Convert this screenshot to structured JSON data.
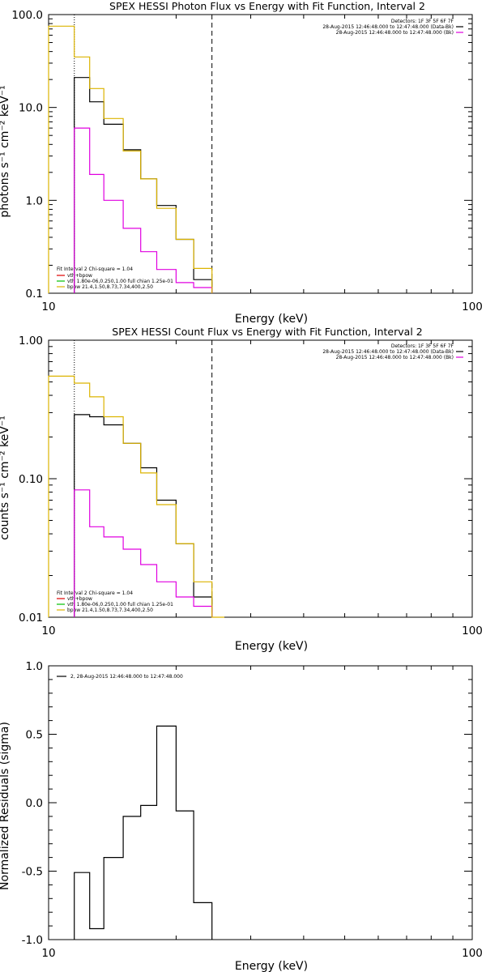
{
  "chart_data": [
    {
      "type": "line",
      "title": "SPEX HESSI Photon Flux vs Energy with Fit Function, Interval 2",
      "xlabel": "Energy (keV)",
      "ylabel": "photons s⁻¹ cm⁻² keV⁻¹",
      "xscale": "log",
      "yscale": "log",
      "xlim": [
        10,
        100
      ],
      "ylim": [
        0.1,
        100
      ],
      "xticks": [
        "10",
        "100"
      ],
      "yticks": [
        "0.1",
        "1.0",
        "10.0",
        "100.0"
      ],
      "vlines": [
        {
          "x": 11.5,
          "style": "dotted"
        },
        {
          "x": 24.3,
          "style": "dashed"
        }
      ],
      "legend_topright": [
        "Detectors: 1F 3F 5F 6F 7F",
        "28-Aug-2015 12:46:48.000 to 12:47:48.000 (Data-Bk)",
        "28-Aug-2015 12:46:48.000 to 12:47:48.000 (Bk)"
      ],
      "legend_bottomleft": [
        "Fit Interval 2   Chi-square = 1.04",
        "vth+bpow",
        "vth 1.80e-06,0.250,1.00  full chian 1.25e-01",
        "bpow 21.4,1.50,8.73,7.34,400,2.50"
      ],
      "series": [
        {
          "name": "28-Aug-2015 12:46:48.000 to 12:47:48.000 (Data-Bk)",
          "color": "#000000",
          "bins": [
            [
              11.5,
              12.5,
              21
            ],
            [
              12.5,
              13.5,
              11.5
            ],
            [
              13.5,
              15,
              6.6
            ],
            [
              15,
              16.5,
              3.5
            ],
            [
              16.5,
              18,
              1.7
            ],
            [
              18,
              20,
              0.88
            ],
            [
              20,
              22,
              0.38
            ],
            [
              22,
              24.3,
              0.14
            ]
          ]
        },
        {
          "name": "28-Aug-2015 12:46:48.000 to 12:47:48.000 (Bk)",
          "color": "#e000e0",
          "bins": [
            [
              11.5,
              12.5,
              6.0
            ],
            [
              12.5,
              13.5,
              1.9
            ],
            [
              13.5,
              15,
              1.0
            ],
            [
              15,
              16.5,
              0.5
            ],
            [
              16.5,
              18,
              0.28
            ],
            [
              18,
              20,
              0.18
            ],
            [
              20,
              22,
              0.13
            ],
            [
              22,
              24.3,
              0.115
            ]
          ]
        },
        {
          "name": "bpow 21.4,1.50,8.73,7.34,400,2.50",
          "color": "#dcb400",
          "bins": [
            [
              10,
              11.5,
              75
            ],
            [
              11.5,
              12.5,
              35
            ],
            [
              12.5,
              13.5,
              16
            ],
            [
              13.5,
              15,
              7.6
            ],
            [
              15,
              16.5,
              3.4
            ],
            [
              16.5,
              18,
              1.7
            ],
            [
              18,
              20,
              0.82
            ],
            [
              20,
              22,
              0.38
            ],
            [
              22,
              24.3,
              0.185
            ]
          ]
        }
      ]
    },
    {
      "type": "line",
      "title": "SPEX HESSI Count Flux vs Energy with Fit Function, Interval 2",
      "xlabel": "Energy (keV)",
      "ylabel": "counts s⁻¹ cm⁻² keV⁻¹",
      "xscale": "log",
      "yscale": "log",
      "xlim": [
        10,
        100
      ],
      "ylim": [
        0.01,
        1.0
      ],
      "xticks": [
        "10",
        "100"
      ],
      "yticks": [
        "0.01",
        "0.10",
        "1.00"
      ],
      "vlines": [
        {
          "x": 11.5,
          "style": "dotted"
        },
        {
          "x": 24.3,
          "style": "dashed"
        }
      ],
      "legend_topright": [
        "Detectors: 1F 3F 5F 6F 7F",
        "28-Aug-2015 12:46:48.000 to 12:47:48.000 (Data-Bk)",
        "28-Aug-2015 12:46:48.000 to 12:47:48.000 (Bk)"
      ],
      "legend_bottomleft": [
        "Fit Interval 2   Chi-square = 1.04",
        "vth+bpow",
        "vth 1.80e-06,0.250,1.00  full chian 1.25e-01",
        "bpow 21.4,1.50,8.73,7.34,400,2.50"
      ],
      "series": [
        {
          "name": "28-Aug-2015 12:46:48.000 to 12:47:48.000 (Data-Bk)",
          "color": "#000000",
          "bins": [
            [
              11.5,
              12.5,
              0.29
            ],
            [
              12.5,
              13.5,
              0.28
            ],
            [
              13.5,
              15,
              0.245
            ],
            [
              15,
              16.5,
              0.18
            ],
            [
              16.5,
              18,
              0.12
            ],
            [
              18,
              20,
              0.07
            ],
            [
              20,
              22,
              0.034
            ],
            [
              22,
              24.3,
              0.014
            ]
          ]
        },
        {
          "name": "28-Aug-2015 12:46:48.000 to 12:47:48.000 (Bk)",
          "color": "#e000e0",
          "bins": [
            [
              11.5,
              12.5,
              0.083
            ],
            [
              12.5,
              13.5,
              0.045
            ],
            [
              13.5,
              15,
              0.038
            ],
            [
              15,
              16.5,
              0.031
            ],
            [
              16.5,
              18,
              0.024
            ],
            [
              18,
              20,
              0.018
            ],
            [
              20,
              22,
              0.014
            ],
            [
              22,
              24.3,
              0.012
            ]
          ]
        },
        {
          "name": "bpow 21.4,1.50,8.73,7.34,400,2.50",
          "color": "#dcb400",
          "bins": [
            [
              10,
              11.5,
              0.55
            ],
            [
              11.5,
              12.5,
              0.49
            ],
            [
              12.5,
              13.5,
              0.39
            ],
            [
              13.5,
              15,
              0.28
            ],
            [
              15,
              16.5,
              0.18
            ],
            [
              16.5,
              18,
              0.11
            ],
            [
              18,
              20,
              0.065
            ],
            [
              20,
              22,
              0.034
            ],
            [
              22,
              24.3,
              0.018
            ],
            [
              24.3,
              26,
              0.01
            ]
          ]
        }
      ]
    },
    {
      "type": "line",
      "title": "",
      "xlabel": "Energy (keV)",
      "ylabel": "Normalized Residuals (sigma)",
      "xscale": "log",
      "yscale": "linear",
      "xlim": [
        10,
        100
      ],
      "ylim": [
        -1.0,
        1.0
      ],
      "xticks": [
        "10",
        "100"
      ],
      "yticks": [
        "-1.0",
        "-0.5",
        "0.0",
        "0.5",
        "1.0"
      ],
      "legend_topleft": [
        "2, 28-Aug-2015 12:46:48.000 to 12:47:48.000"
      ],
      "series": [
        {
          "name": "2, 28-Aug-2015 12:46:48.000 to 12:47:48.000",
          "color": "#000000",
          "bins": [
            [
              11.5,
              12.5,
              -0.51
            ],
            [
              12.5,
              13.5,
              -0.92
            ],
            [
              13.5,
              15,
              -0.4
            ],
            [
              15,
              16.5,
              -0.1
            ],
            [
              16.5,
              18,
              -0.02
            ],
            [
              18,
              20,
              0.56
            ],
            [
              20,
              22,
              -0.06
            ],
            [
              22,
              24.3,
              -0.73
            ]
          ]
        }
      ]
    }
  ]
}
